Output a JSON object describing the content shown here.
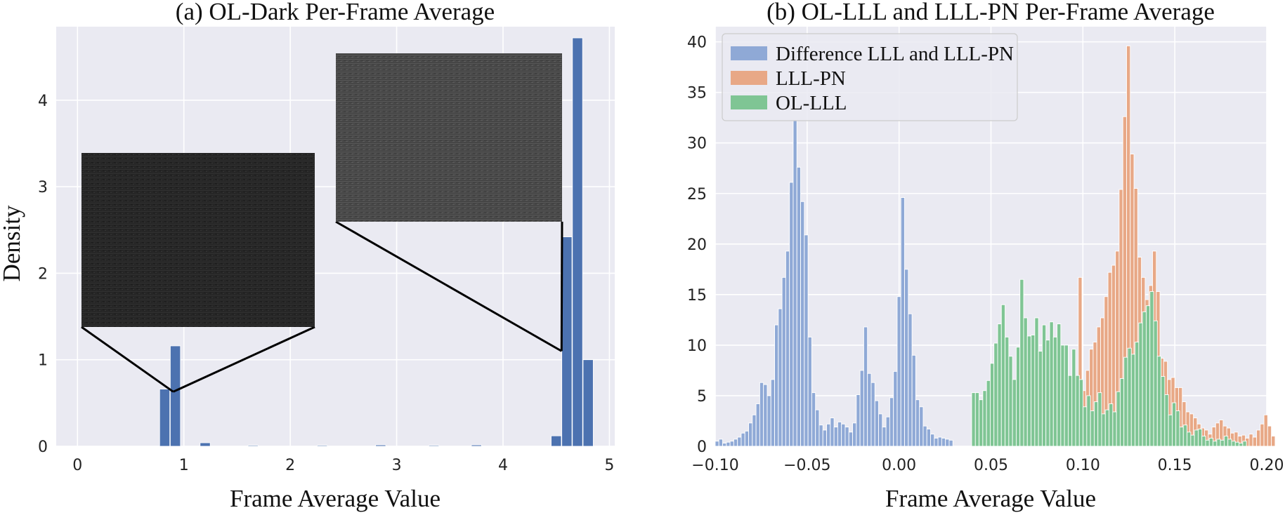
{
  "chart_data": [
    {
      "type": "bar",
      "title": "(a) OL-Dark  Per-Frame Average",
      "xlabel": "Frame Average Value",
      "ylabel": "Density",
      "xlim": [
        -0.2,
        5.05
      ],
      "ylim": [
        0,
        4.85
      ],
      "xticks": [
        0,
        1,
        2,
        3,
        4,
        5
      ],
      "yticks": [
        0,
        1,
        2,
        3,
        4
      ],
      "grid": true,
      "bin_width": 0.095,
      "color": "#4c72b0",
      "bins": [
        {
          "x": 0.82,
          "y": 0.66
        },
        {
          "x": 0.92,
          "y": 1.16
        },
        {
          "x": 1.2,
          "y": 0.04
        },
        {
          "x": 1.65,
          "y": 0.01
        },
        {
          "x": 2.3,
          "y": 0.01
        },
        {
          "x": 2.85,
          "y": 0.015
        },
        {
          "x": 3.35,
          "y": 0.01
        },
        {
          "x": 3.75,
          "y": 0.015
        },
        {
          "x": 4.5,
          "y": 0.12
        },
        {
          "x": 4.6,
          "y": 2.42
        },
        {
          "x": 4.7,
          "y": 4.72
        },
        {
          "x": 4.8,
          "y": 1.0
        }
      ],
      "insets": [
        {
          "name": "dark-frame-inset-left",
          "anchor": {
            "x": 0.9,
            "y": 0.63
          }
        },
        {
          "name": "dark-frame-inset-right",
          "anchor": {
            "x": 4.55,
            "y": 1.1
          }
        }
      ]
    },
    {
      "type": "bar",
      "title": "(b) OL-LLL and LLL-PN  Per-Frame Average",
      "xlabel": "Frame Average Value",
      "ylabel": "",
      "xlim": [
        -0.1,
        0.2
      ],
      "ylim": [
        0,
        41.5
      ],
      "xticks": [
        -0.1,
        -0.05,
        0.0,
        0.05,
        0.1,
        0.15,
        0.2
      ],
      "xtick_labels": [
        "−0.10",
        "−0.05",
        "0.00",
        "0.05",
        "0.10",
        "0.15",
        "0.20"
      ],
      "yticks": [
        0,
        5,
        10,
        15,
        20,
        25,
        30,
        35,
        40
      ],
      "grid": true,
      "legend": "top-left",
      "bin_width": 0.00202,
      "series": [
        {
          "name": "Difference LLL and LLL-PN",
          "color": "#8fa9d6",
          "x0": -0.099,
          "values": [
            0.5,
            0.7,
            0.3,
            0.4,
            0.5,
            0.7,
            0.9,
            1.3,
            1.5,
            2.3,
            3.1,
            4.2,
            6.3,
            6.1,
            5.0,
            6.6,
            12.0,
            13.6,
            16.7,
            19.3,
            26.1,
            32.2,
            27.6,
            24.2,
            20.9,
            10.8,
            5.3,
            3.6,
            2.1,
            1.6,
            2.2,
            2.8,
            1.9,
            2.4,
            2.2,
            1.9,
            1.4,
            2.3,
            5.1,
            7.5,
            11.8,
            7.2,
            6.3,
            4.5,
            3.2,
            1.9,
            2.9,
            4.8,
            7.4,
            14.8,
            24.6,
            17.5,
            13.1,
            9.0,
            4.6,
            3.9,
            2.0,
            1.7,
            1.2,
            0.8,
            0.9,
            0.8,
            0.7,
            0.6
          ]
        },
        {
          "name": "LLL-PN",
          "color": "#e8a886",
          "x0": 0.0985,
          "values": [
            16.7,
            5.5,
            7.5,
            9.6,
            10.3,
            11.8,
            12.7,
            14.8,
            17.2,
            17.9,
            19.3,
            25.4,
            32.6,
            39.6,
            28.9,
            25.5,
            18.7,
            16.7,
            14.5,
            15.9,
            19.3,
            15.3,
            8.7,
            8.4,
            6.6,
            6.8,
            5.8,
            5.8,
            4.4,
            3.4,
            3.2,
            2.8,
            2.2,
            1.8,
            1.6,
            1.2,
            1.9,
            2.3,
            2.6,
            2.0,
            1.8,
            1.3,
            1.4,
            1.0,
            1.1,
            0.8,
            1.2,
            0.9,
            1.6,
            2.2,
            3.1,
            2.0,
            1.0
          ]
        },
        {
          "name": "OL-LLL",
          "color": "#7fc594",
          "x0": 0.0405,
          "values": [
            5.3,
            5.3,
            4.6,
            5.5,
            6.5,
            8.2,
            10.2,
            12.1,
            14.0,
            10.8,
            8.9,
            6.6,
            9.8,
            16.5,
            12.7,
            10.9,
            11.0,
            12.7,
            9.4,
            12.0,
            10.5,
            12.3,
            10.8,
            12.1,
            10.0,
            10.0,
            7.0,
            9.6,
            7.0,
            6.6,
            3.9,
            5.0,
            3.5,
            4.4,
            5.3,
            3.2,
            3.6,
            4.2,
            3.4,
            5.4,
            6.7,
            8.8,
            9.7,
            9.1,
            10.3,
            12.2,
            13.3,
            13.9,
            15.3,
            12.4,
            8.9,
            6.9,
            5.1,
            3.1,
            4.3,
            3.5,
            1.9,
            2.1,
            1.4,
            1.1,
            1.6,
            1.7,
            1.0,
            0.6,
            0.8,
            0.5,
            0.7,
            0.6,
            1.0,
            0.7,
            0.5,
            0.4,
            0.3,
            0.5
          ]
        }
      ]
    }
  ]
}
